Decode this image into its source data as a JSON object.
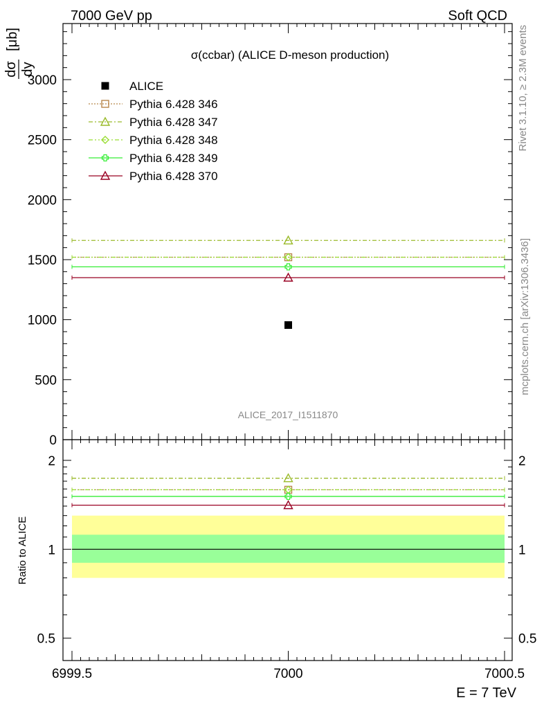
{
  "header": {
    "left": "7000 GeV pp",
    "right": "Soft QCD"
  },
  "side": {
    "rivet": "Rivet 3.1.10, ≥ 2.3M events",
    "mcplots": "mcplots.cern.ch [arXiv:1306.3436]"
  },
  "chart_data": {
    "type": "scatter",
    "title": "σ(ccbar) (ALICE D-meson production)",
    "analysis_label": "ALICE_2017_I1511870",
    "ylabel_num": "dσ",
    "ylabel_den": "dy",
    "ylabel_unit": "[μb]",
    "xlabel": "E = 7 TeV",
    "ratio_ylabel": "Ratio to ALICE",
    "xlim": [
      6999.5,
      7000.5
    ],
    "ylim": [
      0,
      3500
    ],
    "ratio_ylim": [
      0.42,
      2.35
    ],
    "x_ticks": [
      "6999.5",
      "7000",
      "7000.5"
    ],
    "y_ticks": [
      "0",
      "500",
      "1000",
      "1500",
      "2000",
      "2500",
      "3000"
    ],
    "ratio_ticks": [
      "0.5",
      "1",
      "2"
    ],
    "data": {
      "name": "ALICE",
      "x": 7000,
      "y": 955,
      "color": "#000000"
    },
    "ratio_band": {
      "inner": [
        0.9,
        1.12
      ],
      "outer": [
        0.8,
        1.3
      ],
      "inner_color": "#99ff99",
      "outer_color": "#ffff99"
    },
    "series": [
      {
        "name": "Pythia 6.428 346",
        "x": 7000,
        "y": 1520,
        "ratio": 1.59,
        "color": "#b8864b",
        "marker": "square",
        "dash": "2,2"
      },
      {
        "name": "Pythia 6.428 347",
        "x": 7000,
        "y": 1660,
        "ratio": 1.74,
        "color": "#9aba2a",
        "marker": "triangle",
        "dash": "6,3,2,3"
      },
      {
        "name": "Pythia 6.428 348",
        "x": 7000,
        "y": 1520,
        "ratio": 1.59,
        "color": "#99dd33",
        "marker": "diamond",
        "dash": "6,3,2,3,2,3"
      },
      {
        "name": "Pythia 6.428 349",
        "x": 7000,
        "y": 1440,
        "ratio": 1.51,
        "color": "#33ee33",
        "marker": "cross",
        "dash": ""
      },
      {
        "name": "Pythia 6.428 370",
        "x": 7000,
        "y": 1350,
        "ratio": 1.41,
        "color": "#990022",
        "marker": "triangle",
        "dash": ""
      }
    ]
  }
}
